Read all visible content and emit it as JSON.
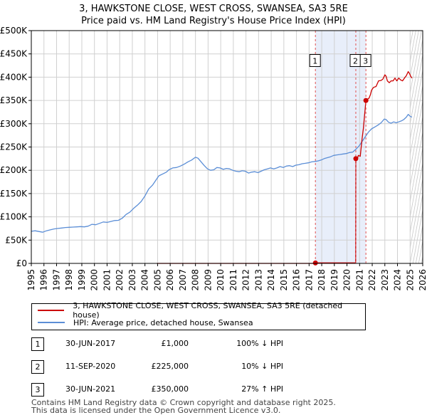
{
  "chart_data": {
    "type": "line",
    "title": "3, HAWKSTONE CLOSE, WEST CROSS, SWANSEA, SA3 5RE",
    "subtitle": "Price paid vs. HM Land Registry's House Price Index (HPI)",
    "x_ticks": [
      "1995",
      "1996",
      "1997",
      "1998",
      "1999",
      "2000",
      "2001",
      "2002",
      "2003",
      "2004",
      "2005",
      "2006",
      "2007",
      "2008",
      "2009",
      "2010",
      "2011",
      "2012",
      "2013",
      "2014",
      "2015",
      "2016",
      "2017",
      "2018",
      "2019",
      "2020",
      "2021",
      "2022",
      "2023",
      "2024",
      "2025",
      "2026"
    ],
    "y_ticks": [
      "£0",
      "£50K",
      "£100K",
      "£150K",
      "£200K",
      "£250K",
      "£300K",
      "£350K",
      "£400K",
      "£450K",
      "£500K"
    ],
    "xlim": [
      1995,
      2026
    ],
    "ylim": [
      0,
      500000
    ],
    "grid": true,
    "shaded_region": [
      2017.5,
      2021.5
    ],
    "forecast_region": [
      2025.0,
      2026.0
    ],
    "series": [
      {
        "name": "3, HAWKSTONE CLOSE, WEST CROSS, SWANSEA, SA3 5RE (detached house)",
        "color": "#cc0000",
        "points": [
          [
            2004.95,
            0
          ],
          [
            2017.5,
            0
          ],
          [
            2017.5,
            1000
          ],
          [
            2020.69,
            1000
          ],
          [
            2020.7,
            225000
          ],
          [
            2020.8,
            222000
          ],
          [
            2020.9,
            232000
          ],
          [
            2021.05,
            230000
          ],
          [
            2021.2,
            268000
          ],
          [
            2021.3,
            290000
          ],
          [
            2021.5,
            350000
          ],
          [
            2021.6,
            352000
          ],
          [
            2021.75,
            355000
          ],
          [
            2021.85,
            362000
          ],
          [
            2021.95,
            372000
          ],
          [
            2022.1,
            378000
          ],
          [
            2022.3,
            380000
          ],
          [
            2022.5,
            392000
          ],
          [
            2022.7,
            393000
          ],
          [
            2022.85,
            396000
          ],
          [
            2023.0,
            405000
          ],
          [
            2023.1,
            402000
          ],
          [
            2023.2,
            392000
          ],
          [
            2023.35,
            388000
          ],
          [
            2023.5,
            392000
          ],
          [
            2023.65,
            392000
          ],
          [
            2023.8,
            398000
          ],
          [
            2023.95,
            392000
          ],
          [
            2024.1,
            398000
          ],
          [
            2024.25,
            394000
          ],
          [
            2024.4,
            392000
          ],
          [
            2024.55,
            398000
          ],
          [
            2024.7,
            403000
          ],
          [
            2024.85,
            412000
          ],
          [
            2024.95,
            408000
          ],
          [
            2025.05,
            402000
          ],
          [
            2025.15,
            398000
          ]
        ]
      },
      {
        "name": "HPI: Average price, detached house, Swansea",
        "color": "#5b8ed6",
        "points": [
          [
            1995.0,
            69000
          ],
          [
            1995.3,
            70000
          ],
          [
            1995.6,
            68500
          ],
          [
            1995.9,
            67000
          ],
          [
            1996.2,
            70000
          ],
          [
            1996.5,
            72000
          ],
          [
            1996.8,
            74000
          ],
          [
            1997.1,
            75000
          ],
          [
            1997.4,
            76000
          ],
          [
            1997.7,
            77000
          ],
          [
            1998.0,
            77500
          ],
          [
            1998.3,
            78000
          ],
          [
            1998.6,
            78500
          ],
          [
            1998.9,
            79000
          ],
          [
            1999.2,
            78500
          ],
          [
            1999.5,
            80000
          ],
          [
            1999.8,
            84000
          ],
          [
            2000.1,
            83000
          ],
          [
            2000.4,
            86000
          ],
          [
            2000.7,
            89000
          ],
          [
            2001.0,
            88000
          ],
          [
            2001.3,
            90000
          ],
          [
            2001.6,
            92000
          ],
          [
            2001.9,
            92500
          ],
          [
            2002.2,
            97000
          ],
          [
            2002.5,
            105000
          ],
          [
            2002.8,
            110000
          ],
          [
            2003.1,
            118000
          ],
          [
            2003.4,
            125000
          ],
          [
            2003.7,
            133000
          ],
          [
            2004.0,
            145000
          ],
          [
            2004.3,
            160000
          ],
          [
            2004.6,
            168000
          ],
          [
            2004.9,
            180000
          ],
          [
            2005.1,
            188000
          ],
          [
            2005.4,
            192000
          ],
          [
            2005.7,
            196000
          ],
          [
            2005.9,
            201000
          ],
          [
            2006.2,
            205000
          ],
          [
            2006.5,
            206000
          ],
          [
            2006.8,
            209000
          ],
          [
            2007.1,
            213000
          ],
          [
            2007.4,
            218000
          ],
          [
            2007.7,
            222000
          ],
          [
            2008.0,
            228000
          ],
          [
            2008.2,
            226000
          ],
          [
            2008.45,
            218000
          ],
          [
            2008.7,
            210000
          ],
          [
            2008.95,
            203000
          ],
          [
            2009.2,
            200000
          ],
          [
            2009.45,
            201000
          ],
          [
            2009.7,
            206000
          ],
          [
            2009.95,
            205000
          ],
          [
            2010.2,
            202000
          ],
          [
            2010.45,
            204000
          ],
          [
            2010.7,
            203000
          ],
          [
            2010.95,
            200000
          ],
          [
            2011.2,
            198000
          ],
          [
            2011.45,
            197000
          ],
          [
            2011.7,
            199000
          ],
          [
            2011.95,
            198000
          ],
          [
            2012.2,
            194000
          ],
          [
            2012.45,
            196000
          ],
          [
            2012.7,
            197000
          ],
          [
            2012.95,
            195000
          ],
          [
            2013.2,
            198000
          ],
          [
            2013.45,
            201000
          ],
          [
            2013.7,
            203000
          ],
          [
            2013.95,
            205000
          ],
          [
            2014.2,
            203000
          ],
          [
            2014.45,
            205000
          ],
          [
            2014.7,
            208000
          ],
          [
            2014.95,
            206000
          ],
          [
            2015.2,
            209000
          ],
          [
            2015.45,
            210000
          ],
          [
            2015.7,
            208000
          ],
          [
            2015.95,
            211000
          ],
          [
            2016.2,
            212000
          ],
          [
            2016.45,
            214000
          ],
          [
            2016.7,
            215000
          ],
          [
            2016.95,
            216000
          ],
          [
            2017.2,
            218000
          ],
          [
            2017.45,
            219000
          ],
          [
            2017.7,
            220000
          ],
          [
            2017.95,
            222000
          ],
          [
            2018.2,
            225000
          ],
          [
            2018.45,
            227000
          ],
          [
            2018.7,
            229000
          ],
          [
            2018.95,
            232000
          ],
          [
            2019.2,
            233000
          ],
          [
            2019.45,
            234000
          ],
          [
            2019.7,
            235000
          ],
          [
            2019.95,
            236000
          ],
          [
            2020.2,
            238000
          ],
          [
            2020.45,
            239000
          ],
          [
            2020.7,
            245000
          ],
          [
            2020.95,
            252000
          ],
          [
            2021.2,
            262000
          ],
          [
            2021.45,
            272000
          ],
          [
            2021.7,
            282000
          ],
          [
            2021.95,
            289000
          ],
          [
            2022.2,
            293000
          ],
          [
            2022.45,
            297000
          ],
          [
            2022.7,
            302000
          ],
          [
            2022.95,
            310000
          ],
          [
            2023.1,
            309000
          ],
          [
            2023.3,
            303000
          ],
          [
            2023.5,
            301000
          ],
          [
            2023.7,
            304000
          ],
          [
            2023.9,
            302000
          ],
          [
            2024.1,
            304000
          ],
          [
            2024.3,
            306000
          ],
          [
            2024.5,
            309000
          ],
          [
            2024.7,
            314000
          ],
          [
            2024.85,
            320000
          ],
          [
            2025.0,
            316000
          ],
          [
            2025.15,
            314000
          ]
        ]
      }
    ],
    "sales": [
      {
        "label": "1",
        "date": "30-JUN-2017",
        "year": 2017.5,
        "price": 1000,
        "price_text": "£1,000",
        "hpi": "100% ↓ HPI"
      },
      {
        "label": "2",
        "date": "11-SEP-2020",
        "year": 2020.7,
        "price": 225000,
        "price_text": "£225,000",
        "hpi": "10% ↓ HPI"
      },
      {
        "label": "3",
        "date": "30-JUN-2021",
        "year": 2021.5,
        "price": 350000,
        "price_text": "£350,000",
        "hpi": "27% ↑ HPI"
      }
    ],
    "sale_marker_label_value": 435000
  },
  "legend": {
    "property_label": "3, HAWKSTONE CLOSE, WEST CROSS, SWANSEA, SA3 5RE (detached house)",
    "hpi_label": "HPI: Average price, detached house, Swansea",
    "property_color": "#cc0000",
    "hpi_color": "#5b8ed6"
  },
  "footer": {
    "line1": "Contains HM Land Registry data © Crown copyright and database right 2025.",
    "line2": "This data is licensed under the Open Government Licence v3.0."
  }
}
